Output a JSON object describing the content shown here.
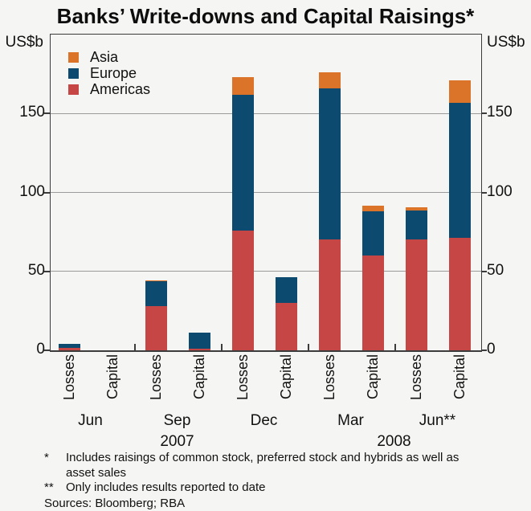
{
  "title": "Banks’ Write-downs and Capital Raisings*",
  "unit_label_left": "US$b",
  "unit_label_right": "US$b",
  "legend": [
    {
      "label": "Asia",
      "color": "#DB7428"
    },
    {
      "label": "Europe",
      "color": "#0D4A70"
    },
    {
      "label": "Americas",
      "color": "#C64545"
    }
  ],
  "chart_data": {
    "type": "bar",
    "stacked": true,
    "title": "Banks’ Write-downs and Capital Raisings*",
    "ylabel": "US$b",
    "ylim": [
      0,
      200
    ],
    "yticks": [
      0,
      50,
      100,
      150
    ],
    "gridlines": [
      50,
      100,
      150
    ],
    "series_order_bottom_to_top": [
      "Americas",
      "Europe",
      "Asia"
    ],
    "colors": {
      "Americas": "#C64545",
      "Europe": "#0D4A70",
      "Asia": "#DB7428",
      "grid": "#9b9b9b",
      "frame": "#3c3c3c",
      "background": "#f5f5f3"
    },
    "legend_position": "top-left-inside",
    "bars": [
      {
        "period": "Jun 2007",
        "label": "Losses",
        "values": {
          "Americas": 1.5,
          "Europe": 2.5,
          "Asia": 0
        }
      },
      {
        "period": "Jun 2007",
        "label": "Capital",
        "values": {
          "Americas": 0,
          "Europe": 0,
          "Asia": 0
        }
      },
      {
        "period": "Sep 2007",
        "label": "Losses",
        "values": {
          "Americas": 28,
          "Europe": 16,
          "Asia": 0.5
        }
      },
      {
        "period": "Sep 2007",
        "label": "Capital",
        "values": {
          "Americas": 1,
          "Europe": 10,
          "Asia": 0
        }
      },
      {
        "period": "Dec 2007",
        "label": "Losses",
        "values": {
          "Americas": 76,
          "Europe": 86,
          "Asia": 11
        }
      },
      {
        "period": "Dec 2007",
        "label": "Capital",
        "values": {
          "Americas": 30,
          "Europe": 16.5,
          "Asia": 0
        }
      },
      {
        "period": "Mar 2008",
        "label": "Losses",
        "values": {
          "Americas": 70,
          "Europe": 96,
          "Asia": 10
        }
      },
      {
        "period": "Mar 2008",
        "label": "Capital",
        "values": {
          "Americas": 60,
          "Europe": 28,
          "Asia": 3.5
        }
      },
      {
        "period": "Jun 2008",
        "label": "Losses",
        "values": {
          "Americas": 70,
          "Europe": 18.5,
          "Asia": 2
        }
      },
      {
        "period": "Jun 2008",
        "label": "Capital",
        "values": {
          "Americas": 71,
          "Europe": 86,
          "Asia": 14
        }
      }
    ],
    "period_labels": [
      "Jun",
      "Sep",
      "Dec",
      "Mar",
      "Jun**"
    ],
    "year_labels": [
      "2007",
      "2008"
    ]
  },
  "footnotes": [
    {
      "marker": "*",
      "text": "Includes raisings of common stock, preferred stock and hybrids as well as asset sales"
    },
    {
      "marker": "**",
      "text": "Only includes results reported to date"
    }
  ],
  "sources": "Sources: Bloomberg; RBA"
}
